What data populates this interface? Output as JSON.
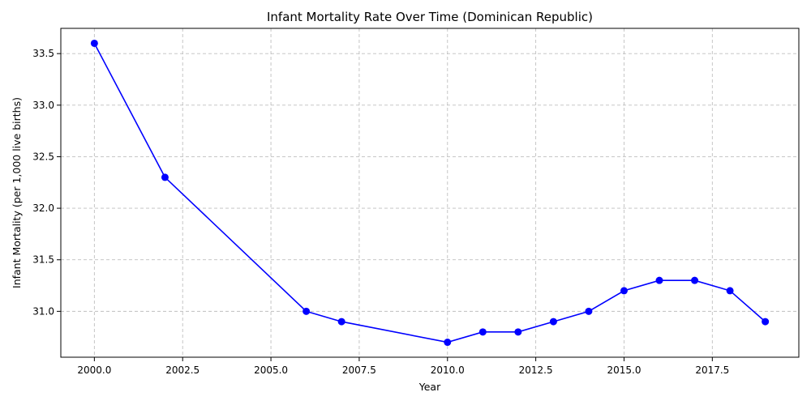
{
  "colors": {
    "series": "#0000ff",
    "grid": "#b0b0b0",
    "background": "#ffffff"
  },
  "chart_data": {
    "type": "line",
    "title": "Infant Mortality Rate Over Time (Dominican Republic)",
    "xlabel": "Year",
    "ylabel": "Infant Mortality (per 1,000 live births)",
    "xlim": [
      1999.05,
      2019.95
    ],
    "ylim": [
      30.555,
      33.745
    ],
    "xticks": [
      2000.0,
      2002.5,
      2005.0,
      2007.5,
      2010.0,
      2012.5,
      2015.0,
      2017.5
    ],
    "xtick_labels": [
      "2000.0",
      "2002.5",
      "2005.0",
      "2007.5",
      "2010.0",
      "2012.5",
      "2015.0",
      "2017.5"
    ],
    "yticks": [
      31.0,
      31.5,
      32.0,
      32.5,
      33.0,
      33.5
    ],
    "ytick_labels": [
      "31.0",
      "31.5",
      "32.0",
      "32.5",
      "33.0",
      "33.5"
    ],
    "grid": true,
    "marker": "circle",
    "x": [
      2000,
      2002,
      2006,
      2007,
      2010,
      2011,
      2012,
      2013,
      2014,
      2015,
      2016,
      2017,
      2018,
      2019
    ],
    "y": [
      33.6,
      32.3,
      31.0,
      30.9,
      30.7,
      30.8,
      30.8,
      30.9,
      31.0,
      31.2,
      31.3,
      31.3,
      31.2,
      30.9
    ]
  }
}
